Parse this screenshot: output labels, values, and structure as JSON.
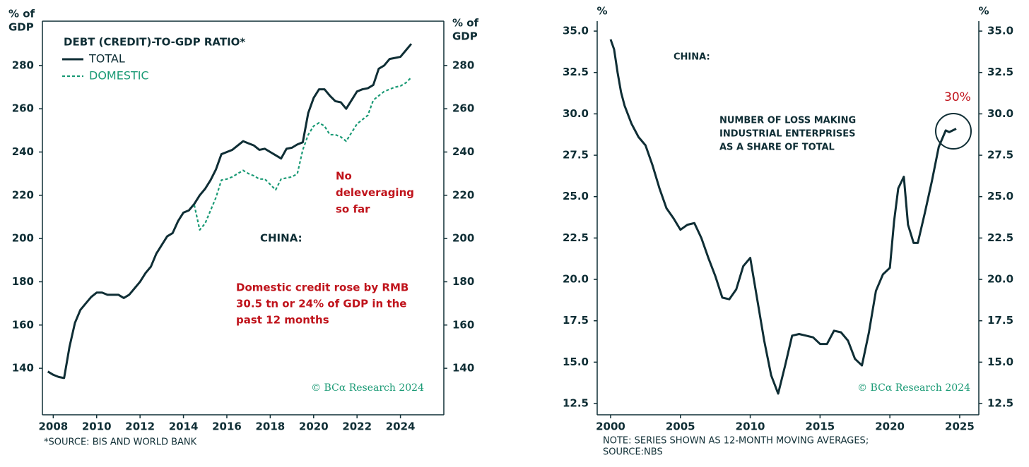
{
  "chart_data": [
    {
      "type": "line",
      "title": "DEBT (CREDIT)-TO-GDP RATIO*",
      "y_label": [
        "% of",
        "GDP"
      ],
      "y2_label": [
        "% of",
        "GDP"
      ],
      "xlim": [
        2007.5,
        2026
      ],
      "xticks": [
        2008,
        2010,
        2012,
        2014,
        2016,
        2018,
        2020,
        2022,
        2024
      ],
      "ylim": [
        118.5,
        300.5
      ],
      "yticks": [
        140,
        160,
        180,
        200,
        220,
        240,
        260,
        280
      ],
      "y2lim": [
        118.5,
        300.5
      ],
      "y2ticks": [
        140,
        160,
        180,
        200,
        220,
        240,
        260,
        280
      ],
      "series": [
        {
          "name": "TOTAL",
          "color": "#0f2e35",
          "style": "solid",
          "x": [
            2007.75,
            2008,
            2008.25,
            2008.5,
            2008.75,
            2009,
            2009.25,
            2009.5,
            2009.75,
            2010,
            2010.25,
            2010.5,
            2010.75,
            2011,
            2011.25,
            2011.5,
            2011.75,
            2012,
            2012.25,
            2012.5,
            2012.75,
            2013,
            2013.25,
            2013.5,
            2013.75,
            2014,
            2014.25,
            2014.5,
            2014.75,
            2015,
            2015.25,
            2015.5,
            2015.75,
            2016,
            2016.25,
            2016.5,
            2016.75,
            2017,
            2017.25,
            2017.5,
            2017.75,
            2018,
            2018.25,
            2018.5,
            2018.75,
            2019,
            2019.25,
            2019.5,
            2019.75,
            2020,
            2020.25,
            2020.5,
            2020.75,
            2021,
            2021.25,
            2021.5,
            2021.75,
            2022,
            2022.25,
            2022.5,
            2022.75,
            2023,
            2023.25,
            2023.5,
            2023.75,
            2024,
            2024.25,
            2024.5
          ],
          "values": [
            138.5,
            137,
            136,
            135.5,
            150,
            161,
            167,
            170,
            173,
            175,
            175,
            174,
            174,
            174,
            172.5,
            174,
            177,
            180,
            184,
            187,
            193,
            197,
            201,
            202.5,
            208,
            212,
            213,
            216,
            220,
            223,
            227,
            232,
            239,
            240,
            241,
            243,
            245,
            244,
            243,
            241,
            241.5,
            240,
            238.5,
            237,
            241.5,
            242,
            243.5,
            244.5,
            258,
            265,
            269,
            269,
            266,
            263.5,
            263,
            260,
            264,
            268,
            269,
            269.5,
            271,
            278.5,
            280,
            283,
            283.5,
            284,
            287,
            290
          ]
        },
        {
          "name": "DOMESTIC",
          "color": "#1a9a75",
          "style": "dashed",
          "x": [
            2014.5,
            2014.75,
            2015,
            2015.25,
            2015.5,
            2015.75,
            2016,
            2016.25,
            2016.5,
            2016.75,
            2017,
            2017.25,
            2017.5,
            2017.75,
            2018,
            2018.25,
            2018.5,
            2018.75,
            2019,
            2019.25,
            2019.5,
            2019.75,
            2020,
            2020.25,
            2020.5,
            2020.75,
            2021,
            2021.25,
            2021.5,
            2021.75,
            2022,
            2022.25,
            2022.5,
            2022.75,
            2023,
            2023.25,
            2023.5,
            2023.75,
            2024,
            2024.25,
            2024.5
          ],
          "values": [
            215.5,
            204,
            207,
            213,
            219,
            227,
            227.5,
            228.5,
            230,
            231.5,
            230,
            229,
            227.5,
            227.5,
            225,
            222.5,
            227.5,
            228,
            228.5,
            230,
            241,
            248,
            252,
            253.5,
            252,
            248,
            248,
            247,
            245,
            249,
            253,
            255,
            257,
            264,
            266,
            268,
            269,
            270,
            270.5,
            272,
            274.5
          ]
        }
      ],
      "annotations": [
        {
          "text": [
            "No",
            "deleveraging",
            "so far"
          ],
          "color": "#c0141c"
        },
        {
          "text": [
            "CHINA:"
          ],
          "color": "#0f2e35"
        },
        {
          "text": [
            "Domestic credit rose by RMB",
            "30.5 tn or 24% of GDP in the",
            "past 12 months"
          ],
          "color": "#c0141c"
        }
      ],
      "watermark": "© BCα Research 2024",
      "notes": [
        "*SOURCE: BIS AND WORLD BANK"
      ]
    },
    {
      "type": "line",
      "y_label": [
        "%"
      ],
      "y2_label": [
        "%"
      ],
      "xlim": [
        1999.04,
        2026.37
      ],
      "xticks": [
        2000,
        2005,
        2010,
        2015,
        2020,
        2025
      ],
      "ylim": [
        11.82,
        35.6
      ],
      "yticks": [
        12.5,
        {
          "value": 15,
          "label": "15.0"
        },
        17.5,
        {
          "value": 20,
          "label": "20.0"
        },
        22.5,
        {
          "value": 25,
          "label": "25.0"
        },
        27.5,
        {
          "value": 30,
          "label": "30.0"
        },
        32.5,
        {
          "value": 35,
          "label": "35.0"
        }
      ],
      "y2lim": [
        11.82,
        35.6
      ],
      "y2ticks": [
        12.5,
        {
          "value": 15,
          "label": "15.0"
        },
        17.5,
        {
          "value": 20,
          "label": "20.0"
        },
        22.5,
        {
          "value": 25,
          "label": "25.0"
        },
        27.5,
        {
          "value": 30,
          "label": "30.0"
        },
        32.5,
        {
          "value": 35,
          "label": "35.0"
        }
      ],
      "series": [
        {
          "name": "NUMBER OF LOSS MAKING INDUSTRIAL ENTERPRISES AS A SHARE OF TOTAL",
          "color": "#0f2e35",
          "style": "solid",
          "x": [
            2000,
            2000.25,
            2000.5,
            2000.75,
            2001,
            2001.5,
            2002,
            2002.5,
            2003,
            2003.5,
            2004,
            2004.5,
            2005,
            2005.5,
            2006,
            2006.5,
            2007,
            2007.5,
            2008,
            2008.5,
            2009,
            2009.5,
            2010,
            2010.5,
            2011,
            2011.5,
            2012,
            2012.5,
            2013,
            2013.5,
            2014,
            2014.5,
            2015,
            2015.5,
            2016,
            2016.5,
            2017,
            2017.5,
            2018,
            2018.5,
            2019,
            2019.5,
            2020,
            2020.3,
            2020.6,
            2021,
            2021.3,
            2021.7,
            2022,
            2022.5,
            2023,
            2023.5,
            2024,
            2024.25,
            2024.5,
            2024.75
          ],
          "values": [
            34.5,
            33.9,
            32.5,
            31.3,
            30.5,
            29.4,
            28.6,
            28.1,
            26.9,
            25.5,
            24.3,
            23.7,
            23.0,
            23.3,
            23.4,
            22.5,
            21.3,
            20.2,
            18.9,
            18.8,
            19.4,
            20.8,
            21.3,
            18.8,
            16.3,
            14.2,
            13.1,
            14.8,
            16.6,
            16.7,
            16.6,
            16.5,
            16.1,
            16.1,
            16.9,
            16.8,
            16.3,
            15.2,
            14.8,
            16.8,
            19.3,
            20.3,
            20.7,
            23.5,
            25.5,
            26.2,
            23.3,
            22.2,
            22.2,
            24.0,
            25.9,
            28.0,
            29.0,
            28.9,
            29.0,
            29.1
          ]
        }
      ],
      "annotations": [
        {
          "text": [
            "CHINA:"
          ],
          "color": "#0f2e35"
        },
        {
          "text": [
            "NUMBER OF LOSS MAKING",
            "INDUSTRIAL ENTERPRISES",
            "AS A SHARE OF TOTAL"
          ],
          "color": "#0f2e35"
        },
        {
          "text": [
            "30%"
          ],
          "color": "#c0141c"
        }
      ],
      "watermark": "© BCα Research 2024",
      "notes": [
        "NOTE: SERIES SHOWN AS 12-MONTH MOVING AVERAGES;",
        "SOURCE:NBS"
      ]
    }
  ]
}
